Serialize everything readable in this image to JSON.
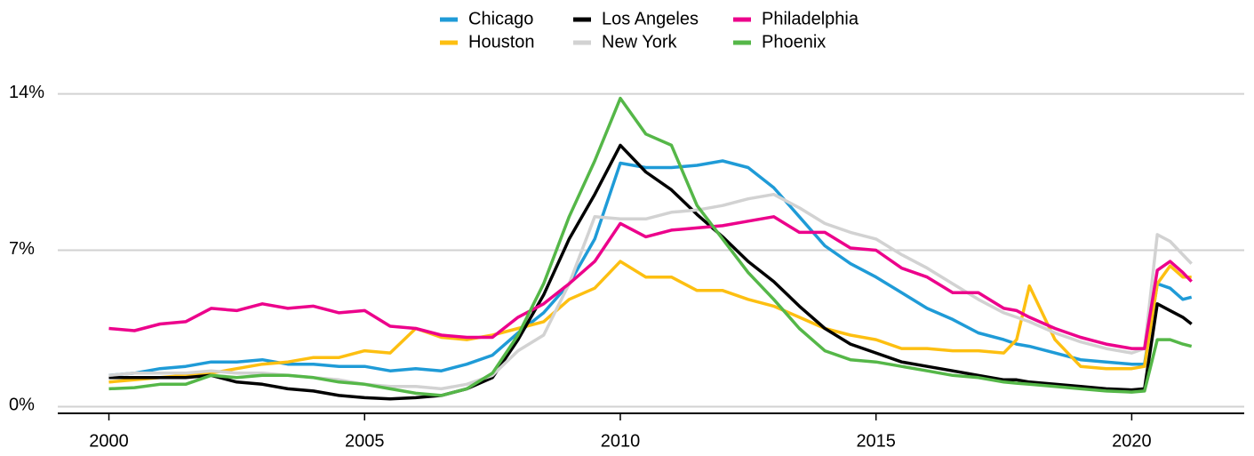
{
  "chart_data": {
    "type": "line",
    "x": [
      2000,
      2000.5,
      2001,
      2001.5,
      2002,
      2002.5,
      2003,
      2003.5,
      2004,
      2004.5,
      2005,
      2005.5,
      2006,
      2006.5,
      2007,
      2007.5,
      2008,
      2008.5,
      2009,
      2009.5,
      2010,
      2010.5,
      2011,
      2011.5,
      2012,
      2012.5,
      2013,
      2013.5,
      2014,
      2014.5,
      2015,
      2015.5,
      2016,
      2016.5,
      2017,
      2017.5,
      2017.75,
      2018,
      2018.5,
      2019,
      2019.5,
      2020,
      2020.25,
      2020.5,
      2020.75,
      2021,
      2021.17
    ],
    "series": [
      {
        "name": "Chicago",
        "color": "#1f9bd7",
        "values": [
          1.4,
          1.5,
          1.7,
          1.8,
          2.0,
          2.0,
          2.1,
          1.9,
          1.9,
          1.8,
          1.8,
          1.6,
          1.7,
          1.6,
          1.9,
          2.3,
          3.3,
          4.2,
          5.5,
          7.5,
          10.9,
          10.7,
          10.7,
          10.8,
          11.0,
          10.7,
          9.8,
          8.5,
          7.2,
          6.4,
          5.8,
          5.1,
          4.4,
          3.9,
          3.3,
          3.0,
          2.8,
          2.7,
          2.4,
          2.1,
          2.0,
          1.9,
          1.9,
          5.5,
          5.3,
          4.8,
          4.9
        ]
      },
      {
        "name": "Houston",
        "color": "#fdbf11",
        "values": [
          1.1,
          1.2,
          1.3,
          1.4,
          1.5,
          1.7,
          1.9,
          2.0,
          2.2,
          2.2,
          2.5,
          2.4,
          3.5,
          3.1,
          3.0,
          3.2,
          3.5,
          3.8,
          4.8,
          5.3,
          6.5,
          5.8,
          5.8,
          5.2,
          5.2,
          4.8,
          4.5,
          4.0,
          3.5,
          3.2,
          3.0,
          2.6,
          2.6,
          2.5,
          2.5,
          2.4,
          3.0,
          5.4,
          3.0,
          1.8,
          1.7,
          1.7,
          1.8,
          5.5,
          6.3,
          5.8,
          5.8
        ]
      },
      {
        "name": "Los Angeles",
        "color": "#000000",
        "values": [
          1.3,
          1.3,
          1.3,
          1.3,
          1.4,
          1.1,
          1.0,
          0.8,
          0.7,
          0.5,
          0.4,
          0.35,
          0.4,
          0.5,
          0.8,
          1.3,
          3.0,
          5.0,
          7.5,
          9.5,
          11.7,
          10.5,
          9.7,
          8.6,
          7.6,
          6.5,
          5.6,
          4.5,
          3.5,
          2.8,
          2.4,
          2.0,
          1.8,
          1.6,
          1.4,
          1.2,
          1.2,
          1.1,
          1.0,
          0.9,
          0.8,
          0.75,
          0.8,
          4.6,
          4.3,
          4.0,
          3.7
        ]
      },
      {
        "name": "New York",
        "color": "#d2d2d2",
        "values": [
          1.4,
          1.5,
          1.5,
          1.5,
          1.6,
          1.5,
          1.5,
          1.4,
          1.3,
          1.2,
          1.0,
          0.9,
          0.9,
          0.8,
          1.0,
          1.4,
          2.5,
          3.2,
          5.5,
          8.5,
          8.4,
          8.4,
          8.7,
          8.8,
          9.0,
          9.3,
          9.5,
          8.9,
          8.2,
          7.8,
          7.5,
          6.8,
          6.2,
          5.5,
          4.8,
          4.2,
          4.0,
          3.8,
          3.3,
          2.9,
          2.6,
          2.4,
          2.6,
          7.7,
          7.4,
          6.8,
          6.4
        ]
      },
      {
        "name": "Philadelphia",
        "color": "#ec008b",
        "values": [
          3.5,
          3.4,
          3.7,
          3.8,
          4.4,
          4.3,
          4.6,
          4.4,
          4.5,
          4.2,
          4.3,
          3.6,
          3.5,
          3.2,
          3.1,
          3.1,
          4.0,
          4.6,
          5.5,
          6.5,
          8.2,
          7.6,
          7.9,
          8.0,
          8.1,
          8.3,
          8.5,
          7.8,
          7.8,
          7.1,
          7.0,
          6.2,
          5.8,
          5.1,
          5.1,
          4.4,
          4.3,
          4.0,
          3.5,
          3.1,
          2.8,
          2.6,
          2.6,
          6.1,
          6.5,
          6.0,
          5.6
        ]
      },
      {
        "name": "Phoenix",
        "color": "#55b748",
        "values": [
          0.8,
          0.85,
          1.0,
          1.0,
          1.4,
          1.3,
          1.4,
          1.4,
          1.3,
          1.1,
          1.0,
          0.8,
          0.6,
          0.5,
          0.8,
          1.5,
          3.2,
          5.5,
          8.5,
          11.0,
          13.8,
          12.2,
          11.7,
          9.0,
          7.5,
          6.0,
          4.8,
          3.5,
          2.5,
          2.1,
          2.0,
          1.8,
          1.6,
          1.4,
          1.3,
          1.1,
          1.05,
          1.0,
          0.9,
          0.8,
          0.7,
          0.65,
          0.7,
          3.0,
          3.0,
          2.8,
          2.7
        ]
      }
    ],
    "xlim": [
      1999,
      2022.2
    ],
    "xticks": [
      2000,
      2005,
      2010,
      2015,
      2020
    ],
    "ylim": [
      -0.3,
      14.5
    ],
    "yticks": [
      {
        "value": 0,
        "label": "0%"
      },
      {
        "value": 7,
        "label": "7%"
      },
      {
        "value": 14,
        "label": "14%"
      }
    ],
    "grid": true,
    "legend": "top"
  }
}
